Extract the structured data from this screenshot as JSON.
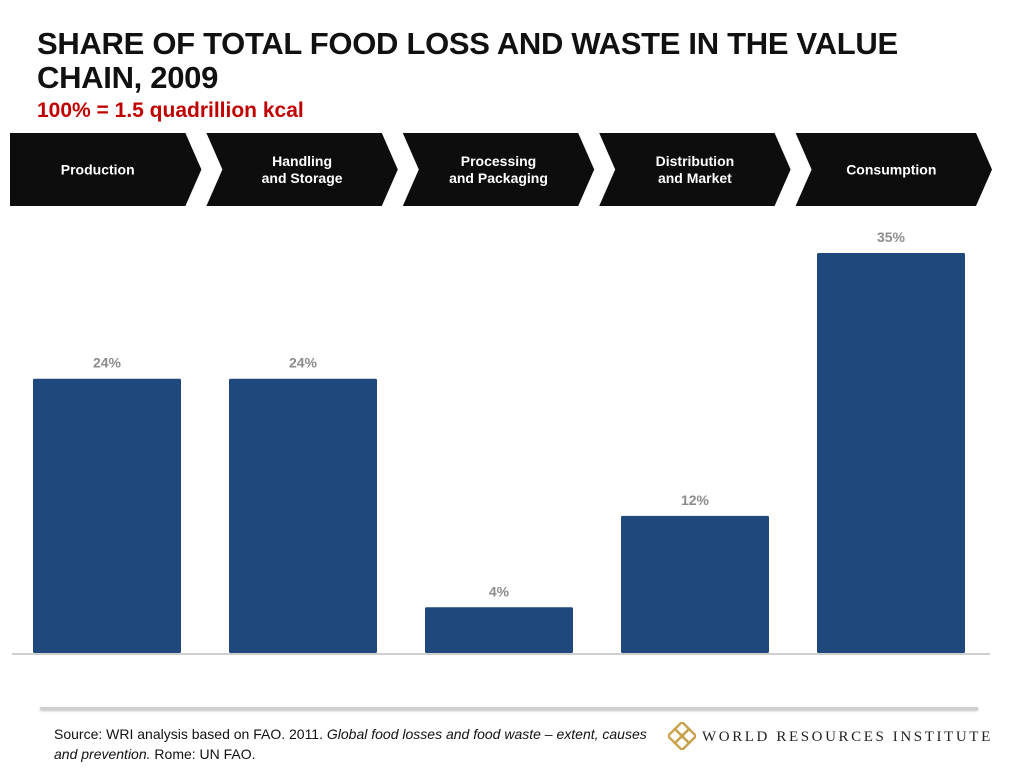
{
  "title": "SHARE OF TOTAL FOOD LOSS AND WASTE IN THE VALUE CHAIN, 2009",
  "subtitle": "100% = 1.5 quadrillion kcal",
  "stages": [
    [
      "Production"
    ],
    [
      "Handling",
      "and Storage"
    ],
    [
      "Processing",
      "and Packaging"
    ],
    [
      "Distribution",
      "and Market"
    ],
    [
      "Consumption"
    ]
  ],
  "chart_data": {
    "type": "bar",
    "categories": [
      "Production",
      "Handling and Storage",
      "Processing and Packaging",
      "Distribution and Market",
      "Consumption"
    ],
    "values": [
      24,
      24,
      4,
      12,
      35
    ],
    "value_labels": [
      "24%",
      "24%",
      "4%",
      "12%",
      "35%"
    ],
    "unit": "%",
    "ylim": [
      0,
      35
    ],
    "grid": false,
    "bar_color": "#1f497d"
  },
  "colors": {
    "banner": "#0d0d0d",
    "bar": "#1f497d",
    "subtitle": "#c00000",
    "value_label": "#8c8c8c",
    "logo": "#c9a14a"
  },
  "footer": {
    "source_prefix": "Source: WRI analysis based on FAO. 2011. ",
    "source_title": "Global food losses and food waste – extent, causes and prevention.",
    "source_suffix": " Rome: UN FAO.",
    "org_name": "WORLD RESOURCES INSTITUTE",
    "logo_icon": "wri-knot-logo-icon"
  }
}
